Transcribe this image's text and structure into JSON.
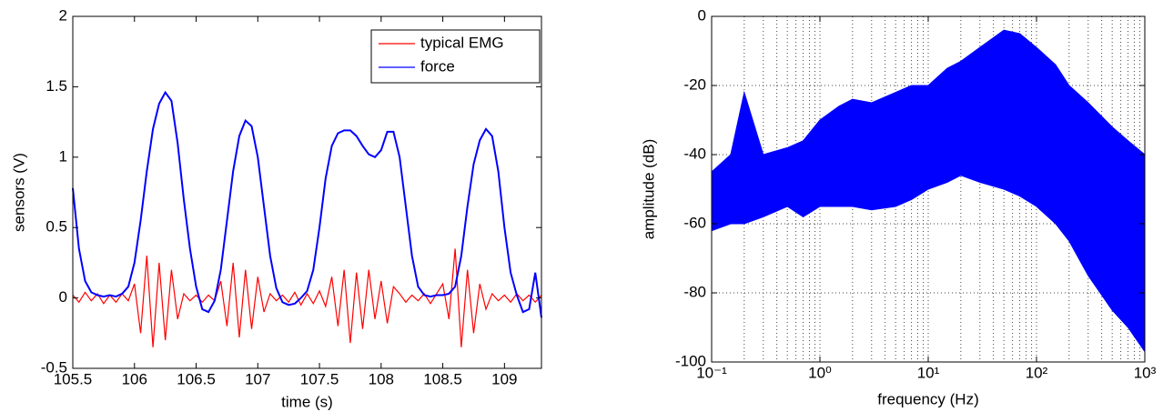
{
  "chart_data": [
    {
      "type": "line",
      "xlabel": "time (s)",
      "ylabel": "sensors (V)",
      "xlim": [
        105.5,
        109.3
      ],
      "xticks": [
        105.5,
        106,
        106.5,
        107,
        107.5,
        108,
        108.5,
        109
      ],
      "ylim": [
        -0.5,
        2
      ],
      "yticks": [
        -0.5,
        0,
        0.5,
        1,
        1.5,
        2
      ],
      "legend": "upper right",
      "x": [
        105.5,
        105.55,
        105.6,
        105.65,
        105.7,
        105.75,
        105.8,
        105.85,
        105.9,
        105.95,
        106,
        106.05,
        106.1,
        106.15,
        106.2,
        106.25,
        106.3,
        106.35,
        106.4,
        106.45,
        106.5,
        106.55,
        106.6,
        106.65,
        106.7,
        106.75,
        106.8,
        106.85,
        106.9,
        106.95,
        107,
        107.05,
        107.1,
        107.15,
        107.2,
        107.25,
        107.3,
        107.35,
        107.4,
        107.45,
        107.5,
        107.55,
        107.6,
        107.65,
        107.7,
        107.75,
        107.8,
        107.85,
        107.9,
        107.95,
        108,
        108.05,
        108.1,
        108.15,
        108.2,
        108.25,
        108.3,
        108.35,
        108.4,
        108.45,
        108.5,
        108.55,
        108.6,
        108.65,
        108.7,
        108.75,
        108.8,
        108.85,
        108.9,
        108.95,
        109,
        109.05,
        109.1,
        109.15,
        109.2,
        109.25,
        109.3
      ],
      "series": [
        {
          "name": "typical EMG",
          "color": "#ff0000",
          "values": [
            0.02,
            -0.03,
            0.04,
            -0.02,
            0.03,
            -0.04,
            0.02,
            -0.03,
            0.03,
            -0.02,
            0.1,
            -0.25,
            0.3,
            -0.35,
            0.25,
            -0.3,
            0.2,
            -0.15,
            0.03,
            -0.02,
            0.02,
            -0.03,
            0.02,
            -0.02,
            0.12,
            -0.2,
            0.25,
            -0.28,
            0.2,
            -0.22,
            0.15,
            -0.1,
            0.03,
            -0.02,
            0.02,
            -0.03,
            0.04,
            -0.05,
            0.03,
            -0.04,
            0.05,
            -0.06,
            0.15,
            -0.2,
            0.2,
            -0.32,
            0.18,
            -0.22,
            0.2,
            -0.15,
            0.12,
            -0.18,
            0.08,
            0.03,
            -0.03,
            0.02,
            -0.02,
            0.03,
            -0.04,
            0.03,
            0.1,
            -0.15,
            0.35,
            -0.35,
            0.2,
            -0.25,
            0.1,
            -0.08,
            0.03,
            -0.02,
            0.02,
            -0.03,
            0.03,
            -0.02,
            0.02,
            -0.03,
            0.02
          ]
        },
        {
          "name": "force",
          "color": "#0000ff",
          "values": [
            0.78,
            0.35,
            0.12,
            0.04,
            0.02,
            0.01,
            0.02,
            0.01,
            0.03,
            0.08,
            0.25,
            0.55,
            0.9,
            1.2,
            1.38,
            1.46,
            1.4,
            1.1,
            0.7,
            0.35,
            0.08,
            -0.08,
            -0.1,
            -0.02,
            0.2,
            0.55,
            0.9,
            1.15,
            1.26,
            1.22,
            1.0,
            0.65,
            0.3,
            0.07,
            -0.03,
            -0.05,
            -0.04,
            0.0,
            0.05,
            0.2,
            0.5,
            0.85,
            1.08,
            1.17,
            1.19,
            1.19,
            1.15,
            1.08,
            1.02,
            1.0,
            1.05,
            1.18,
            1.18,
            1.0,
            0.65,
            0.3,
            0.08,
            0.02,
            0.01,
            0.02,
            0.02,
            0.03,
            0.08,
            0.3,
            0.65,
            0.95,
            1.12,
            1.2,
            1.15,
            0.9,
            0.5,
            0.18,
            0.02,
            -0.1,
            -0.08,
            0.18,
            -0.14
          ]
        }
      ]
    },
    {
      "type": "band",
      "xlabel": "frequency (Hz)",
      "ylabel": "amplitude (dB)",
      "xscale": "log",
      "grid": true,
      "color": "#0000ff",
      "xlim": [
        0.1,
        1000
      ],
      "xticks": [
        {
          "value": 0.1,
          "label": "10⁻¹"
        },
        {
          "value": 1,
          "label": "10⁰"
        },
        {
          "value": 10,
          "label": "10¹"
        },
        {
          "value": 100,
          "label": "10²"
        },
        {
          "value": 1000,
          "label": "10³"
        }
      ],
      "xminorticks": [
        0.2,
        0.3,
        0.4,
        0.5,
        0.6,
        0.7,
        0.8,
        0.9,
        2,
        3,
        4,
        5,
        6,
        7,
        8,
        9,
        20,
        30,
        40,
        50,
        60,
        70,
        80,
        90,
        200,
        300,
        400,
        500,
        600,
        700,
        800,
        900
      ],
      "ylim": [
        -100,
        0
      ],
      "yticks": [
        -100,
        -80,
        -60,
        -40,
        -20,
        0
      ],
      "x": [
        0.1,
        0.15,
        0.2,
        0.3,
        0.5,
        0.7,
        1,
        1.5,
        2,
        3,
        5,
        7,
        10,
        15,
        20,
        30,
        50,
        70,
        100,
        150,
        200,
        300,
        500,
        700,
        1000
      ],
      "upper": [
        -45,
        -40,
        -22,
        -40,
        -38,
        -36,
        -30,
        -26,
        -24,
        -25,
        -22,
        -20,
        -20,
        -15,
        -13,
        -9,
        -4,
        -5,
        -9,
        -14,
        -20,
        -25,
        -32,
        -36,
        -40
      ],
      "lower": [
        -62,
        -60,
        -60,
        -58,
        -55,
        -58,
        -55,
        -55,
        -55,
        -56,
        -55,
        -53,
        -50,
        -48,
        -46,
        -48,
        -50,
        -52,
        -55,
        -60,
        -65,
        -75,
        -85,
        -90,
        -97
      ]
    }
  ]
}
